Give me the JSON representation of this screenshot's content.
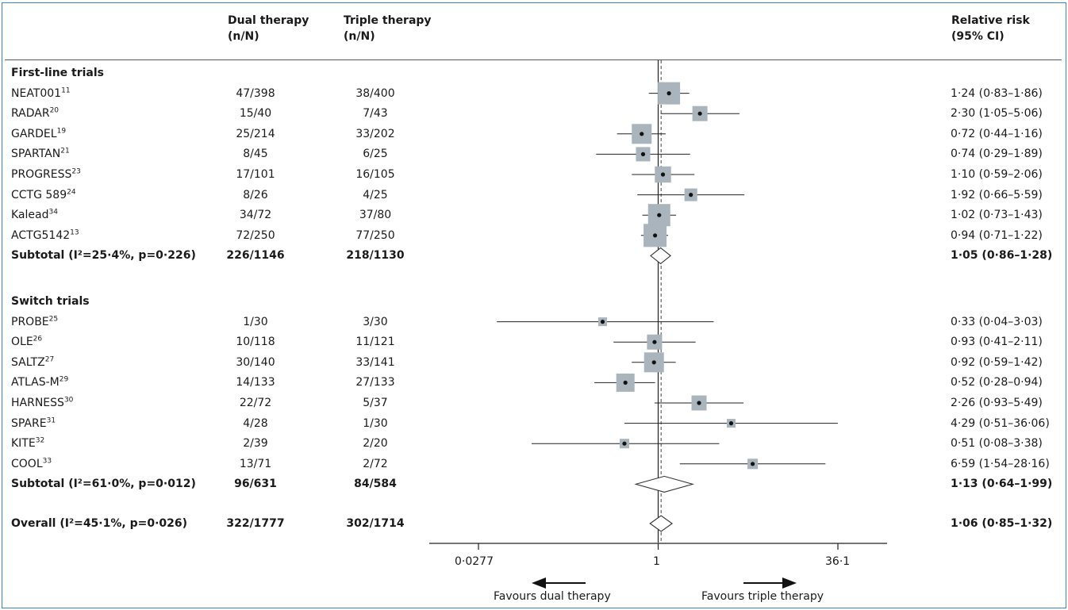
{
  "header": {
    "dual_line1": "Dual therapy",
    "dual_line2": "(n/N)",
    "triple_line1": "Triple therapy",
    "triple_line2": "(n/N)",
    "rr_line1": "Relative risk",
    "rr_line2": "(95% CI)"
  },
  "chart_data": {
    "type": "forest",
    "scale": "log",
    "xlim": [
      0.0277,
      36.1
    ],
    "xticks": [
      "0·0277",
      "1",
      "36·1"
    ],
    "xtick_values": [
      0.0277,
      1,
      36.1
    ],
    "overall_effect": 1.06,
    "favours_left": "Favours dual therapy",
    "favours_right": "Favours triple therapy",
    "groups": [
      {
        "name": "First-line trials",
        "rows": [
          {
            "study": "NEAT001",
            "ref": "11",
            "dual": "47/398",
            "triple": "38/400",
            "rr": 1.24,
            "lo": 0.83,
            "hi": 1.86,
            "weight": 1.0,
            "label": "1·24 (0·83–1·86)"
          },
          {
            "study": "RADAR",
            "ref": "20",
            "dual": "15/40",
            "triple": "7/43",
            "rr": 2.3,
            "lo": 1.05,
            "hi": 5.06,
            "weight": 0.55,
            "label": "2·30 (1·05–5·06)"
          },
          {
            "study": "GARDEL",
            "ref": "19",
            "dual": "25/214",
            "triple": "33/202",
            "rr": 0.72,
            "lo": 0.44,
            "hi": 1.16,
            "weight": 0.85,
            "label": "0·72 (0·44–1·16)"
          },
          {
            "study": "SPARTAN",
            "ref": "21",
            "dual": "8/45",
            "triple": "6/25",
            "rr": 0.74,
            "lo": 0.29,
            "hi": 1.89,
            "weight": 0.5,
            "label": "0·74 (0·29–1·89)"
          },
          {
            "study": "PROGRESS",
            "ref": "23",
            "dual": "17/101",
            "triple": "16/105",
            "rr": 1.1,
            "lo": 0.59,
            "hi": 2.06,
            "weight": 0.62,
            "label": "1·10 (0·59–2·06)"
          },
          {
            "study": "CCTG 589",
            "ref": "24",
            "dual": "8/26",
            "triple": "4/25",
            "rr": 1.92,
            "lo": 0.66,
            "hi": 5.59,
            "weight": 0.4,
            "label": "1·92 (0·66–5·59)"
          },
          {
            "study": "Kalead",
            "ref": "34",
            "dual": "34/72",
            "triple": "37/80",
            "rr": 1.02,
            "lo": 0.73,
            "hi": 1.43,
            "weight": 1.0,
            "label": "1·02 (0·73–1·43)"
          },
          {
            "study": "ACTG5142",
            "ref": "13",
            "dual": "72/250",
            "triple": "77/250",
            "rr": 0.94,
            "lo": 0.71,
            "hi": 1.22,
            "weight": 1.05,
            "label": "0·94 (0·71–1·22)"
          }
        ],
        "subtotal": {
          "label": "Subtotal (I²=25·4%, p=0·226)",
          "dual": "226/1146",
          "triple": "218/1130",
          "rr": 1.05,
          "lo": 0.86,
          "hi": 1.28,
          "text": "1·05 (0·86–1·28)"
        }
      },
      {
        "name": "Switch trials",
        "rows": [
          {
            "study": "PROBE",
            "ref": "25",
            "dual": "1/30",
            "triple": "3/30",
            "rr": 0.33,
            "lo": 0.04,
            "hi": 3.03,
            "weight": 0.15,
            "label": "0·33 (0·04–3·03)"
          },
          {
            "study": "OLE",
            "ref": "26",
            "dual": "10/118",
            "triple": "11/121",
            "rr": 0.93,
            "lo": 0.41,
            "hi": 2.11,
            "weight": 0.55,
            "label": "0·93 (0·41–2·11)"
          },
          {
            "study": "SALTZ",
            "ref": "27",
            "dual": "30/140",
            "triple": "33/141",
            "rr": 0.92,
            "lo": 0.59,
            "hi": 1.42,
            "weight": 0.85,
            "label": "0·92 (0·59–1·42)"
          },
          {
            "study": "ATLAS-M",
            "ref": "29",
            "dual": "14/133",
            "triple": "27/133",
            "rr": 0.52,
            "lo": 0.28,
            "hi": 0.94,
            "weight": 0.75,
            "label": "0·52 (0·28–0·94)"
          },
          {
            "study": "HARNESS",
            "ref": "30",
            "dual": "22/72",
            "triple": "5/37",
            "rr": 2.26,
            "lo": 0.93,
            "hi": 5.49,
            "weight": 0.55,
            "label": "2·26 (0·93–5·49)"
          },
          {
            "study": "SPARE",
            "ref": "31",
            "dual": "4/28",
            "triple": "1/30",
            "rr": 4.29,
            "lo": 0.51,
            "hi": 36.06,
            "weight": 0.15,
            "label": "4·29 (0·51–36·06)"
          },
          {
            "study": "KITE",
            "ref": "32",
            "dual": "2/39",
            "triple": "2/20",
            "rr": 0.51,
            "lo": 0.08,
            "hi": 3.38,
            "weight": 0.2,
            "label": "0·51 (0·08–3·38)"
          },
          {
            "study": "COOL",
            "ref": "33",
            "dual": "13/71",
            "triple": "2/72",
            "rr": 6.59,
            "lo": 1.54,
            "hi": 28.16,
            "weight": 0.25,
            "label": "6·59 (1·54–28·16)"
          }
        ],
        "subtotal": {
          "label": "Subtotal (I²=61·0%, p=0·012)",
          "dual": "96/631",
          "triple": "84/584",
          "rr": 1.13,
          "lo": 0.64,
          "hi": 1.99,
          "text": "1·13 (0·64–1·99)"
        }
      }
    ],
    "overall": {
      "label": "Overall (I²=45·1%, p=0·026)",
      "dual": "322/1777",
      "triple": "302/1714",
      "rr": 1.06,
      "lo": 0.85,
      "hi": 1.32,
      "text": "1·06 (0·85–1·32)"
    }
  }
}
